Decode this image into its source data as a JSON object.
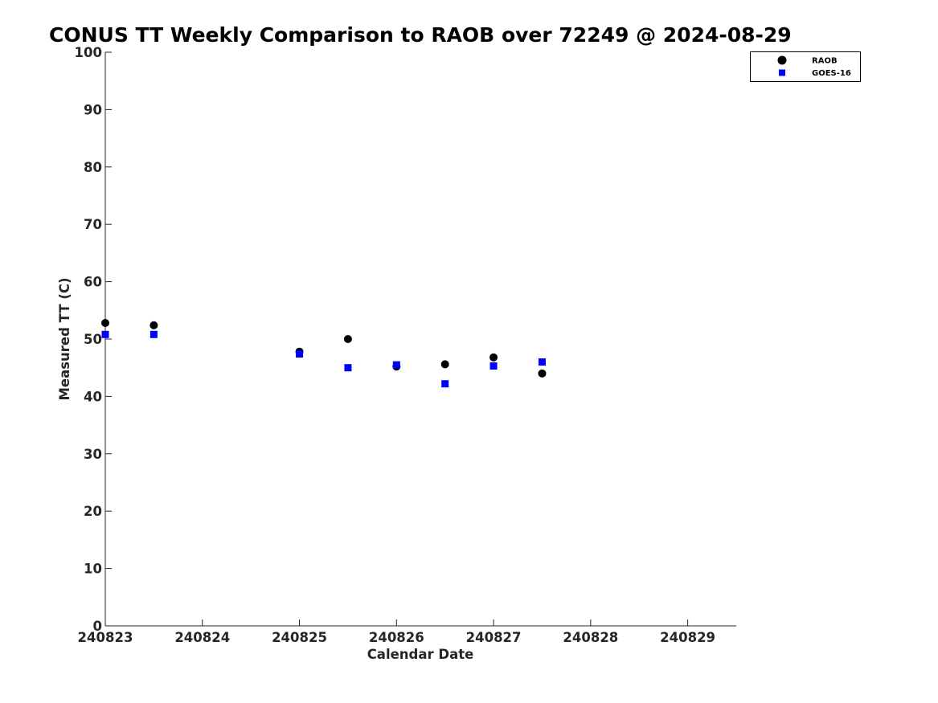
{
  "chart_data": {
    "type": "scatter",
    "title": "CONUS TT Weekly Comparison to RAOB over 72249 @ 2024-08-29",
    "xlabel": "Calendar Date",
    "ylabel": "Measured TT (C)",
    "xlim": [
      0,
      6.5
    ],
    "ylim": [
      0,
      100
    ],
    "x_ticks": [
      0,
      1,
      2,
      3,
      4,
      5,
      6
    ],
    "x_tick_labels": [
      "240823",
      "240824",
      "240825",
      "240826",
      "240827",
      "240828",
      "240829"
    ],
    "y_ticks": [
      0,
      10,
      20,
      30,
      40,
      50,
      60,
      70,
      80,
      90,
      100
    ],
    "y_tick_labels": [
      "0",
      "10",
      "20",
      "30",
      "40",
      "50",
      "60",
      "70",
      "80",
      "90",
      "100"
    ],
    "grid": false,
    "legend_position": "top-right",
    "series": [
      {
        "name": "RAOB",
        "marker": "circle",
        "color": "#000000",
        "points": [
          {
            "x": 0.0,
            "y": 52.8
          },
          {
            "x": 0.5,
            "y": 52.4
          },
          {
            "x": 2.0,
            "y": 47.8
          },
          {
            "x": 2.5,
            "y": 50.0
          },
          {
            "x": 3.0,
            "y": 45.2
          },
          {
            "x": 3.5,
            "y": 45.6
          },
          {
            "x": 4.0,
            "y": 46.8
          },
          {
            "x": 4.5,
            "y": 44.0
          }
        ]
      },
      {
        "name": "GOES-16",
        "marker": "square",
        "color": "#0000ff",
        "points": [
          {
            "x": 0.0,
            "y": 50.8
          },
          {
            "x": 0.5,
            "y": 50.8
          },
          {
            "x": 2.0,
            "y": 47.4
          },
          {
            "x": 2.5,
            "y": 45.0
          },
          {
            "x": 3.0,
            "y": 45.5
          },
          {
            "x": 3.5,
            "y": 42.2
          },
          {
            "x": 4.0,
            "y": 45.3
          },
          {
            "x": 4.5,
            "y": 46.0
          }
        ]
      }
    ]
  }
}
